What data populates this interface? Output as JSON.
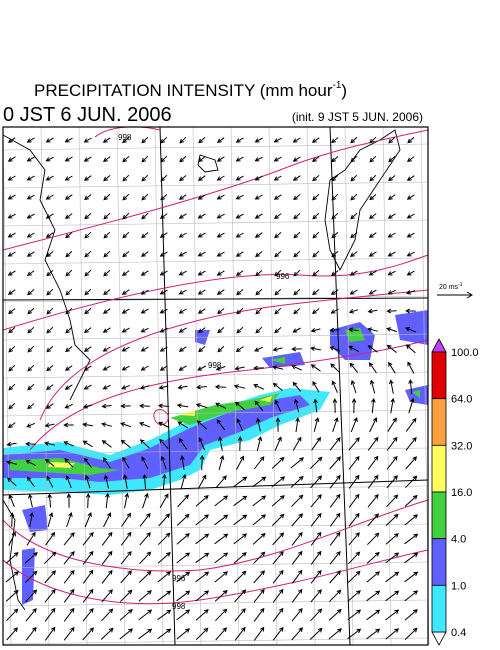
{
  "header": {
    "title_main": "PRECIPITATION INTENSITY (mm hour",
    "title_sup": "-1",
    "title_end": ")",
    "valid_time": "0 JST 6 JUN. 2006",
    "init_time": "(init. 9 JST 5 JUN. 2006)"
  },
  "vector_scale": {
    "label_main": "20 ms",
    "label_sup": "-1"
  },
  "colorbar": {
    "labels": [
      "100.0",
      "64.0",
      "32.0",
      "16.0",
      "4.0",
      "1.0",
      "0.4"
    ]
  },
  "contour_labels": [
    "998",
    "996",
    "998",
    "996",
    "998"
  ]
}
